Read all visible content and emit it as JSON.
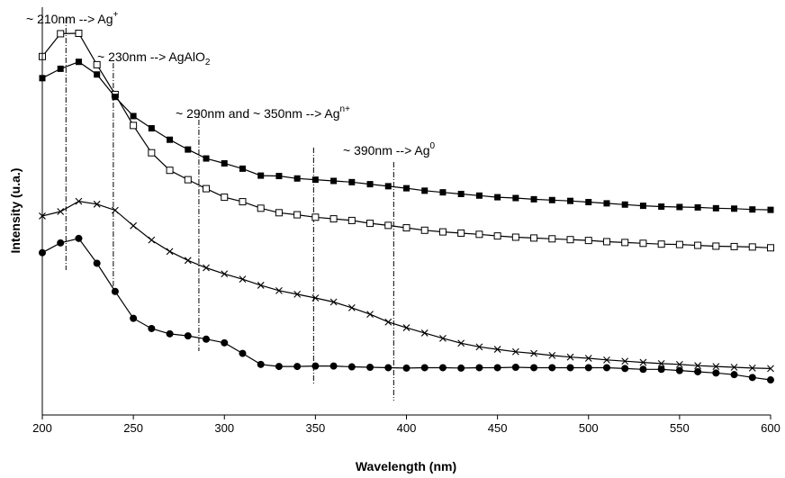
{
  "chart_data": {
    "type": "line",
    "xlabel": "Wavelength (nm)",
    "ylabel": "Intensity (u.a.)",
    "xlim": [
      200,
      600
    ],
    "ylim": [
      0,
      100
    ],
    "x_ticks": [
      "200",
      "250",
      "300",
      "350",
      "400",
      "450",
      "500",
      "550",
      "600"
    ],
    "grid": false,
    "legend": "none",
    "x": [
      200,
      210,
      220,
      230,
      240,
      250,
      260,
      270,
      280,
      290,
      300,
      310,
      320,
      330,
      340,
      350,
      360,
      370,
      380,
      390,
      400,
      410,
      420,
      430,
      440,
      450,
      460,
      470,
      480,
      490,
      500,
      510,
      520,
      530,
      540,
      550,
      560,
      570,
      580,
      590,
      600
    ],
    "series": [
      {
        "marker": "open-square",
        "color": "#000000",
        "values": [
          87.9,
          93.5,
          93.6,
          85.9,
          78.6,
          71.0,
          64.3,
          60.0,
          57.7,
          55.5,
          53.4,
          52.3,
          50.7,
          49.6,
          49.1,
          48.5,
          48.1,
          47.7,
          47.0,
          46.5,
          45.9,
          45.3,
          44.9,
          44.6,
          44.3,
          43.9,
          43.6,
          43.4,
          43.2,
          43.0,
          42.8,
          42.5,
          42.3,
          42.1,
          41.9,
          41.8,
          41.6,
          41.4,
          41.3,
          41.2,
          41.0
        ]
      },
      {
        "marker": "filled-square",
        "color": "#000000",
        "values": [
          82.6,
          84.9,
          86.6,
          83.5,
          78.0,
          73.3,
          70.3,
          67.5,
          65.1,
          62.9,
          61.7,
          60.4,
          58.7,
          58.6,
          58.0,
          57.7,
          57.4,
          57.1,
          56.6,
          56.1,
          55.6,
          55.0,
          54.6,
          54.2,
          53.8,
          53.4,
          53.2,
          52.9,
          52.7,
          52.5,
          52.2,
          51.9,
          51.6,
          51.3,
          51.1,
          51.0,
          50.9,
          50.7,
          50.6,
          50.4,
          50.3
        ]
      },
      {
        "marker": "cross",
        "color": "#000000",
        "values": [
          48.8,
          49.9,
          52.4,
          51.7,
          50.2,
          46.4,
          42.9,
          40.1,
          37.9,
          36.1,
          34.6,
          33.3,
          31.8,
          30.5,
          29.6,
          28.7,
          27.7,
          26.3,
          24.7,
          22.8,
          21.4,
          20.1,
          18.8,
          17.6,
          16.7,
          16.1,
          15.5,
          15.1,
          14.6,
          14.2,
          13.9,
          13.5,
          13.2,
          12.9,
          12.6,
          12.4,
          12.1,
          11.9,
          11.7,
          11.5,
          11.4
        ]
      },
      {
        "marker": "filled-circle",
        "color": "#000000",
        "values": [
          39.8,
          42.2,
          43.3,
          37.2,
          30.3,
          23.7,
          21.2,
          19.9,
          19.4,
          18.6,
          17.7,
          15.1,
          12.4,
          11.9,
          11.9,
          12.0,
          12.0,
          11.8,
          11.7,
          11.6,
          11.5,
          11.6,
          11.6,
          11.5,
          11.6,
          11.6,
          11.7,
          11.6,
          11.6,
          11.6,
          11.6,
          11.6,
          11.4,
          11.2,
          11.2,
          10.9,
          10.6,
          10.3,
          9.9,
          9.2,
          8.6
        ]
      }
    ],
    "reference_lines": [
      213,
      239,
      286,
      349,
      393
    ],
    "annotations": [
      {
        "id": "ag-plus",
        "base": "~ 210nm --> Ag",
        "sup": "+",
        "sub": ""
      },
      {
        "id": "agalo2",
        "base": "~ 230nm --> AgAlO",
        "sup": "",
        "sub": "2"
      },
      {
        "id": "ag-n-plus",
        "base": "~ 290nm and ~ 350nm --> Ag",
        "sup": "n+",
        "sub": ""
      },
      {
        "id": "ag-zero",
        "base": "~ 390nm --> Ag",
        "sup": "0",
        "sub": ""
      }
    ]
  }
}
